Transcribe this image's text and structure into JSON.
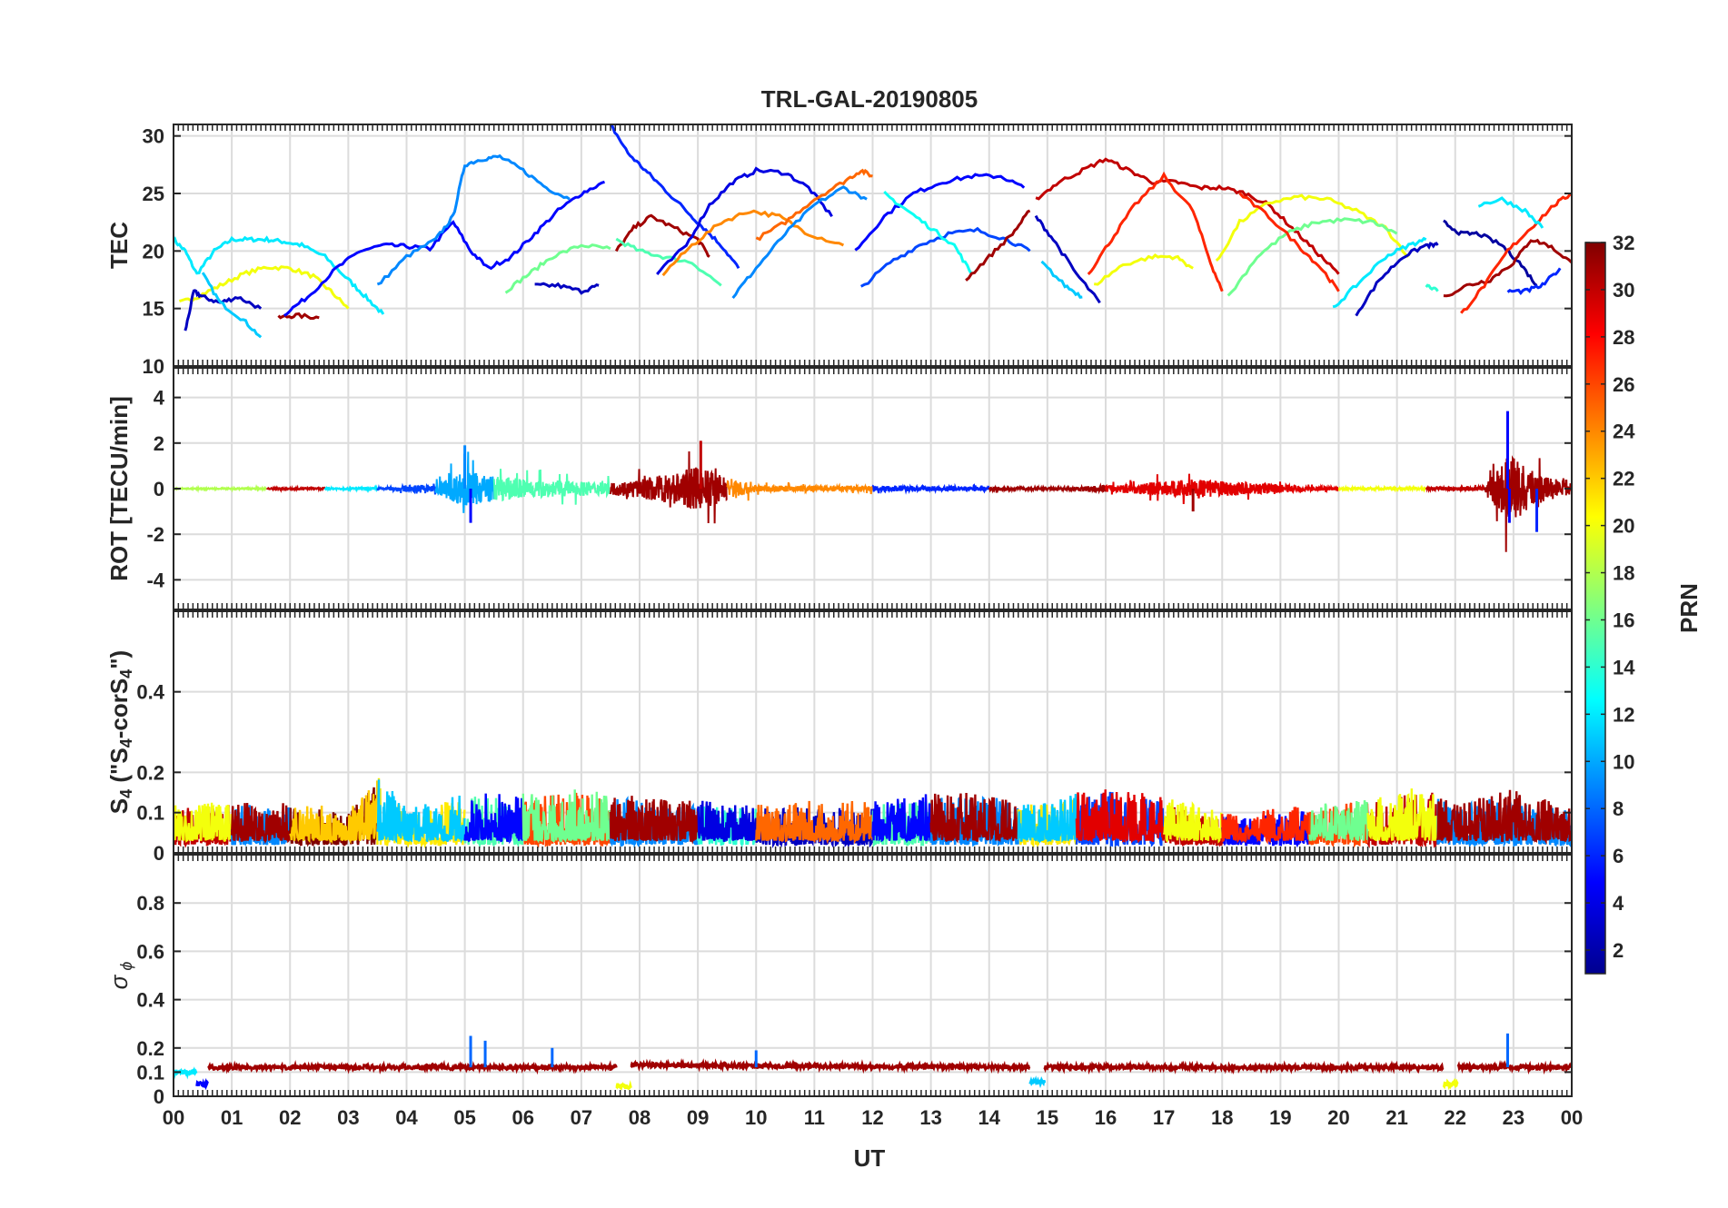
{
  "title": "TRL-GAL-20190805",
  "xlabel": "UT",
  "x_tick_labels": [
    "00",
    "01",
    "02",
    "03",
    "04",
    "05",
    "06",
    "07",
    "08",
    "09",
    "10",
    "11",
    "12",
    "13",
    "14",
    "15",
    "16",
    "17",
    "18",
    "19",
    "20",
    "21",
    "22",
    "23",
    "00"
  ],
  "colorbar": {
    "label": "PRN",
    "range": [
      1,
      32
    ],
    "tick_labels": [
      "2",
      "4",
      "6",
      "8",
      "10",
      "12",
      "14",
      "16",
      "18",
      "20",
      "22",
      "24",
      "26",
      "28",
      "30",
      "32"
    ],
    "tick_values": [
      2,
      4,
      6,
      8,
      10,
      12,
      14,
      16,
      18,
      20,
      22,
      24,
      26,
      28,
      30,
      32
    ]
  },
  "panels": [
    {
      "id": "tec",
      "ylabel": "TEC",
      "ylim": [
        10,
        31
      ],
      "ytick_values": [
        10,
        15,
        20,
        25,
        30
      ],
      "ytick_labels": [
        "10",
        "15",
        "20",
        "25",
        "30"
      ]
    },
    {
      "id": "rot",
      "ylabel": "ROT [TECU/min]",
      "ylim": [
        -5.3,
        5.3
      ],
      "ytick_values": [
        -4,
        -2,
        0,
        2,
        4
      ],
      "ytick_labels": [
        "-4",
        "-2",
        "0",
        "2",
        "4"
      ]
    },
    {
      "id": "s4",
      "ylabel_main": "S",
      "ylabel_sub": "4",
      "ylabel_rest": " (\"S",
      "ylabel_sub2": "4",
      "ylabel_rest2": "-corS",
      "ylabel_sub3": "4",
      "ylabel_end": "\")",
      "ylim": [
        0,
        0.6
      ],
      "ytick_values": [
        0,
        0.1,
        0.2,
        0.4
      ],
      "ytick_labels": [
        "0",
        "0.1",
        "0.2",
        "0.4"
      ]
    },
    {
      "id": "sigma",
      "ylabel_main": "σ",
      "ylabel_sub": "ϕ",
      "ylim": [
        0,
        1
      ],
      "ytick_values": [
        0,
        0.1,
        0.2,
        0.4,
        0.6,
        0.8
      ],
      "ytick_labels": [
        "0",
        "0.1",
        "0.2",
        "0.4",
        "0.6",
        "0.8"
      ]
    }
  ],
  "chart_data": {
    "type": "line",
    "title": "TRL-GAL-20190805",
    "xlabel": "UT",
    "xlim": [
      0,
      24
    ],
    "color_by": "PRN",
    "tec_series": [
      {
        "prn": 12,
        "x": [
          0,
          0.2,
          0.4,
          0.7,
          1.0,
          1.3,
          1.6,
          1.9,
          2.2,
          2.6,
          3.0,
          3.3,
          3.6
        ],
        "y": [
          21,
          20,
          18,
          20,
          21,
          21,
          21,
          20.8,
          20.5,
          19.5,
          17.5,
          16,
          14.5
        ]
      },
      {
        "prn": 20,
        "x": [
          0.1,
          0.4,
          0.8,
          1.2,
          1.6,
          2.0,
          2.4,
          2.7,
          3.0
        ],
        "y": [
          15.5,
          16,
          17,
          18,
          18.6,
          18.5,
          17.8,
          16.5,
          15
        ]
      },
      {
        "prn": 3,
        "x": [
          0.2,
          0.35,
          0.5,
          0.8,
          1.1,
          1.5
        ],
        "y": [
          13,
          16.5,
          16,
          15.5,
          16,
          15
        ]
      },
      {
        "prn": 11,
        "x": [
          0.5,
          0.8,
          1.2,
          1.5
        ],
        "y": [
          18,
          15.5,
          14,
          12.5
        ]
      },
      {
        "prn": 31,
        "x": [
          1.8,
          2.1,
          2.5
        ],
        "y": [
          14.2,
          14.4,
          14.2
        ]
      },
      {
        "prn": 5,
        "x": [
          1.9,
          2.3,
          2.8,
          3.2,
          3.6,
          4.0,
          4.4,
          4.8,
          5.1,
          5.4,
          5.8,
          6.2,
          6.6,
          7.0,
          7.4
        ],
        "y": [
          14.5,
          16,
          18.5,
          20,
          20.5,
          20.4,
          20.2,
          22.5,
          20,
          18.5,
          19.5,
          21.5,
          23.5,
          25,
          26
        ]
      },
      {
        "prn": 9,
        "x": [
          3.5,
          4.0,
          4.5,
          4.8,
          5.0,
          5.3,
          5.6,
          6.0,
          6.4,
          6.8
        ],
        "y": [
          17,
          19.5,
          21,
          23,
          27.5,
          28,
          28.2,
          27,
          25.5,
          24.5
        ]
      },
      {
        "prn": 16,
        "x": [
          5.7,
          6.1,
          6.5,
          7.0,
          7.5
        ],
        "y": [
          16.5,
          18,
          19.5,
          20.5,
          20.2
        ]
      },
      {
        "prn": 3,
        "x": [
          6.2,
          6.6,
          7.0,
          7.3
        ],
        "y": [
          17,
          17,
          16.5,
          17
        ]
      },
      {
        "prn": 6,
        "x": [
          7.5,
          7.8,
          8.1,
          8.4,
          8.8,
          9.1,
          9.4,
          9.7
        ],
        "y": [
          31,
          28.5,
          27,
          25.5,
          23.5,
          22,
          20.5,
          18.5
        ]
      },
      {
        "prn": 31,
        "x": [
          7.6,
          7.9,
          8.2,
          8.6,
          9.0,
          9.2
        ],
        "y": [
          20,
          22,
          23,
          22,
          21,
          19.5
        ]
      },
      {
        "prn": 15,
        "x": [
          7.6,
          8.0,
          8.4,
          8.9,
          9.4
        ],
        "y": [
          21,
          20,
          19.5,
          19,
          17
        ]
      },
      {
        "prn": 4,
        "x": [
          8.3,
          8.8,
          9.2,
          9.6,
          10.0,
          10.5,
          10.9,
          11.3
        ],
        "y": [
          18,
          20.5,
          24,
          26,
          27,
          26.8,
          25.5,
          23
        ]
      },
      {
        "prn": 24,
        "x": [
          8.4,
          8.9,
          9.4,
          9.9,
          10.4,
          10.9,
          11.5
        ],
        "y": [
          18,
          20.5,
          22.5,
          23.5,
          23,
          21.5,
          20.5
        ]
      },
      {
        "prn": 9,
        "x": [
          9.6,
          10.0,
          10.5,
          11.0,
          11.5,
          11.9
        ],
        "y": [
          16,
          18.5,
          21.5,
          24,
          25.5,
          24.5
        ]
      },
      {
        "prn": 25,
        "x": [
          10.0,
          10.5,
          11.0,
          11.5,
          11.8,
          12.0
        ],
        "y": [
          21,
          22.5,
          24.5,
          26,
          27,
          26.5
        ]
      },
      {
        "prn": 5,
        "x": [
          11.7,
          12.2,
          12.7,
          13.2,
          13.7,
          14.2,
          14.6
        ],
        "y": [
          20,
          23,
          25,
          26,
          26.5,
          26.5,
          25.5
        ]
      },
      {
        "prn": 7,
        "x": [
          11.8,
          12.3,
          12.8,
          13.3,
          13.8,
          14.3,
          14.7
        ],
        "y": [
          16.8,
          19,
          20.5,
          21.5,
          21.8,
          21,
          20
        ]
      },
      {
        "prn": 13,
        "x": [
          12.2,
          12.6,
          13.0,
          13.4,
          13.7
        ],
        "y": [
          25,
          23.5,
          22,
          20.5,
          18
        ]
      },
      {
        "prn": 31,
        "x": [
          13.6,
          14.0,
          14.4,
          14.7
        ],
        "y": [
          17.5,
          19.5,
          21.5,
          23.5
        ]
      },
      {
        "prn": 30,
        "x": [
          14.8,
          15.2,
          15.6,
          16.0,
          16.4,
          16.8,
          17.2,
          17.6,
          18.0,
          18.4,
          18.8,
          19.2,
          19.6,
          20.0
        ],
        "y": [
          24.5,
          26,
          27,
          28,
          27,
          26,
          26,
          25.5,
          25.5,
          25,
          24,
          22,
          20,
          18
        ]
      },
      {
        "prn": 3,
        "x": [
          14.8,
          15.1,
          15.5,
          15.9
        ],
        "y": [
          23,
          21,
          18,
          15.5
        ]
      },
      {
        "prn": 11,
        "x": [
          14.9,
          15.3,
          15.6
        ],
        "y": [
          19,
          17,
          16
        ]
      },
      {
        "prn": 27,
        "x": [
          15.7,
          16.1,
          16.5,
          17.0,
          17.5,
          17.8,
          18.0
        ],
        "y": [
          18,
          21,
          24,
          26.5,
          23.5,
          19,
          16.5
        ]
      },
      {
        "prn": 20,
        "x": [
          15.8,
          16.3,
          16.8,
          17.2,
          17.5
        ],
        "y": [
          17,
          18.8,
          19.5,
          19.5,
          18.5
        ]
      },
      {
        "prn": 20,
        "x": [
          17.9,
          18.3,
          18.8,
          19.3,
          19.8,
          20.3,
          20.8,
          21.2
        ],
        "y": [
          19,
          22.5,
          24.2,
          24.7,
          24.5,
          23.5,
          22,
          19.5
        ]
      },
      {
        "prn": 16,
        "x": [
          18.1,
          18.6,
          19.1,
          19.6,
          20.1,
          20.6,
          21.0
        ],
        "y": [
          16,
          19.5,
          21.5,
          22.5,
          22.7,
          22.5,
          21.5
        ]
      },
      {
        "prn": 27,
        "x": [
          18.3,
          18.8,
          19.3,
          19.7,
          20.0
        ],
        "y": [
          25,
          23,
          20.5,
          18.5,
          16.5
        ]
      },
      {
        "prn": 12,
        "x": [
          19.9,
          20.3,
          20.8,
          21.2,
          21.5
        ],
        "y": [
          15,
          17,
          19.5,
          20.5,
          21
        ]
      },
      {
        "prn": 3,
        "x": [
          20.3,
          20.7,
          21.1,
          21.5,
          21.7
        ],
        "y": [
          14.5,
          17.5,
          19.5,
          20.5,
          20.5
        ]
      },
      {
        "prn": 14,
        "x": [
          21.5,
          21.7
        ],
        "y": [
          17,
          16.5
        ]
      },
      {
        "prn": 2,
        "x": [
          21.8,
          22.1,
          22.4,
          22.8,
          23.1,
          23.4
        ],
        "y": [
          22.5,
          21.5,
          21.5,
          20.5,
          19,
          17
        ]
      },
      {
        "prn": 31,
        "x": [
          21.8,
          22.2,
          22.6,
          23.0,
          23.3,
          23.6,
          24.0
        ],
        "y": [
          16,
          17,
          17.5,
          19,
          21,
          20.5,
          19
        ]
      },
      {
        "prn": 27,
        "x": [
          22.1,
          22.5,
          22.9,
          23.3,
          23.7,
          24.0
        ],
        "y": [
          14.5,
          17,
          20,
          22,
          24,
          25
        ]
      },
      {
        "prn": 12,
        "x": [
          22.4,
          22.8,
          23.2,
          23.5
        ],
        "y": [
          24,
          24.5,
          23.5,
          22
        ]
      },
      {
        "prn": 6,
        "x": [
          22.9,
          23.2,
          23.5,
          23.8
        ],
        "y": [
          16.5,
          16.5,
          17,
          18.5
        ]
      }
    ],
    "rot_envelope": {
      "x": [
        0,
        3.5,
        4.5,
        5.0,
        5.5,
        6.5,
        7.5,
        8.0,
        9.0,
        10,
        12,
        14,
        15,
        16,
        17.5,
        20,
        21.5,
        22.5,
        22.9,
        23.3,
        24
      ],
      "amplitude": [
        0.05,
        0.1,
        0.5,
        1.8,
        1.2,
        0.8,
        0.6,
        0.9,
        2.1,
        0.3,
        0.3,
        0.2,
        0.1,
        0.3,
        0.9,
        0.1,
        0.15,
        0.2,
        3.4,
        1.8,
        0.5
      ]
    },
    "s4_envelope": {
      "x": [
        0,
        1,
        2,
        3,
        3.5,
        4,
        5,
        6,
        7,
        8,
        9,
        10,
        11,
        12,
        13,
        14,
        15,
        16,
        17,
        18,
        19,
        20,
        21,
        21.5,
        22,
        23,
        24
      ],
      "max": [
        0.11,
        0.12,
        0.12,
        0.1,
        0.19,
        0.1,
        0.14,
        0.14,
        0.15,
        0.13,
        0.12,
        0.11,
        0.12,
        0.12,
        0.14,
        0.14,
        0.12,
        0.16,
        0.13,
        0.09,
        0.1,
        0.12,
        0.14,
        0.16,
        0.11,
        0.15,
        0.1
      ]
    },
    "sigma_phi_series": [
      {
        "x": [
          0,
          0.4
        ],
        "y": [
          0.1,
          0.1
        ]
      },
      {
        "x": [
          0.4,
          0.6
        ],
        "y": [
          0.05,
          0.05
        ]
      },
      {
        "x": [
          0.6,
          7.6
        ],
        "y": [
          0.12,
          0.12
        ]
      },
      {
        "x": [
          7.6,
          7.85
        ],
        "y": [
          0.04,
          0.04
        ]
      },
      {
        "x": [
          7.85,
          14.7
        ],
        "y": [
          0.13,
          0.12
        ]
      },
      {
        "x": [
          14.7,
          14.95
        ],
        "y": [
          0.06,
          0.06
        ]
      },
      {
        "x": [
          14.95,
          21.8
        ],
        "y": [
          0.12,
          0.12
        ]
      },
      {
        "x": [
          21.8,
          22.05
        ],
        "y": [
          0.05,
          0.05
        ]
      },
      {
        "x": [
          22.05,
          24
        ],
        "y": [
          0.12,
          0.12
        ]
      }
    ],
    "sigma_phi_spikes": [
      {
        "x": 5.1,
        "y": 0.25
      },
      {
        "x": 5.35,
        "y": 0.23
      },
      {
        "x": 6.5,
        "y": 0.2
      },
      {
        "x": 10.0,
        "y": 0.19
      },
      {
        "x": 22.9,
        "y": 0.26
      }
    ]
  }
}
